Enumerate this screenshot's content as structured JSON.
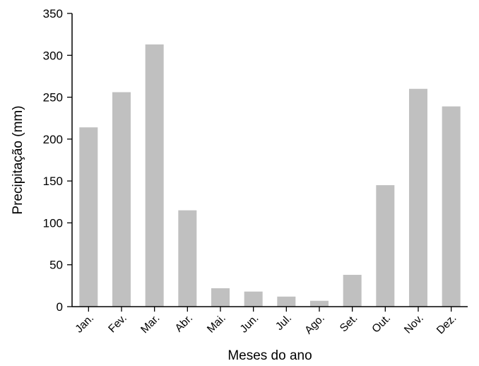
{
  "chart_data": {
    "type": "bar",
    "title": "",
    "xlabel": "Meses do ano",
    "ylabel": "Precipitação (mm)",
    "categories": [
      "Jan.",
      "Fev.",
      "Mar.",
      "Abr.",
      "Mai.",
      "Jun.",
      "Jul.",
      "Ago.",
      "Set.",
      "Out.",
      "Nov.",
      "Dez."
    ],
    "values": [
      214,
      256,
      313,
      115,
      22,
      18,
      12,
      7,
      38,
      145,
      260,
      239
    ],
    "ylim": [
      0,
      350
    ],
    "yticks": [
      "0",
      "50",
      "100",
      "150",
      "200",
      "250",
      "300",
      "350"
    ],
    "grid": false,
    "colors": {
      "bar": "#c0c0c0",
      "axis": "#000000"
    }
  }
}
